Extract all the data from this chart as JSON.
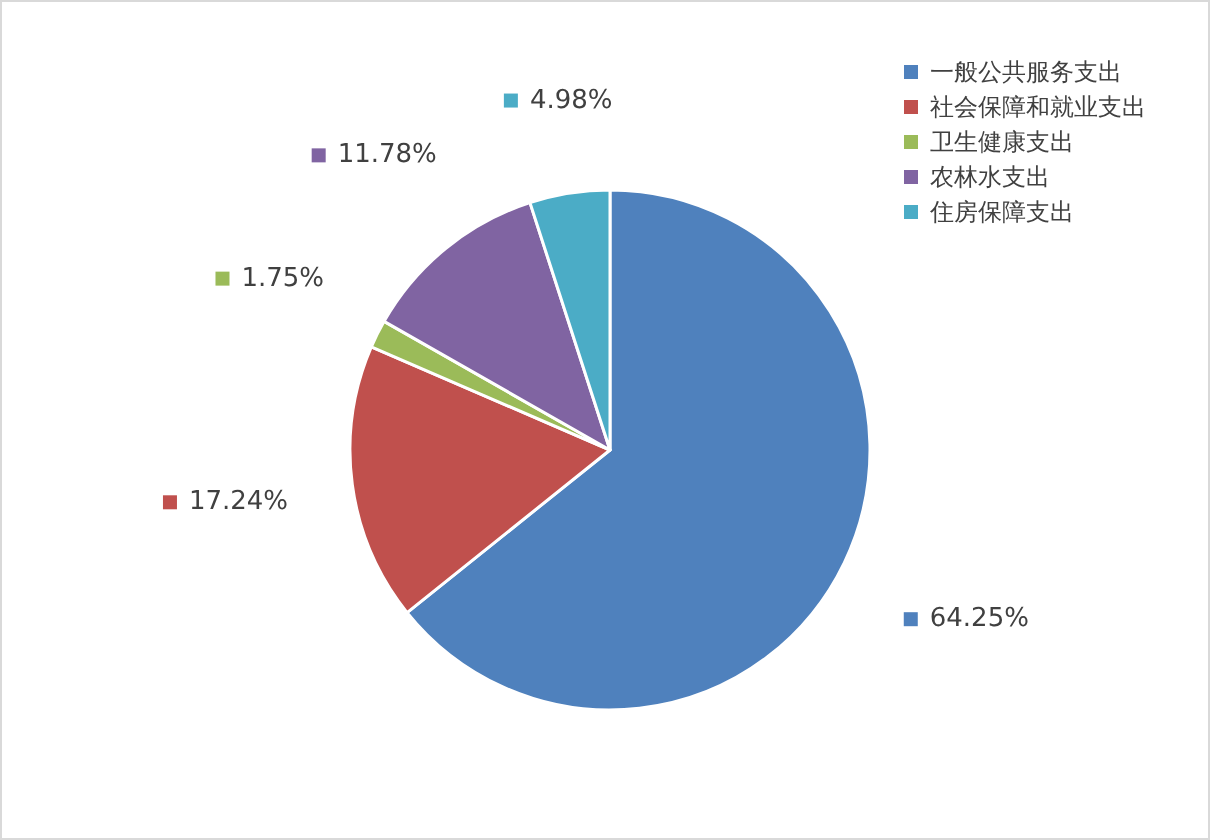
{
  "chart_data": {
    "type": "pie",
    "categories": [
      "一般公共服务支出",
      "社会保障和就业支出",
      "卫生健康支出",
      "农林水支出",
      "住房保障支出"
    ],
    "values": [
      64.25,
      17.24,
      1.75,
      11.78,
      4.98
    ],
    "colors": [
      "#4f81bd",
      "#c0504d",
      "#9bbb59",
      "#8064a2",
      "#4bacc6"
    ],
    "value_labels": [
      "64.25%",
      "17.24%",
      "1.75%",
      "11.78%",
      "4.98%"
    ],
    "legend": "top right"
  }
}
